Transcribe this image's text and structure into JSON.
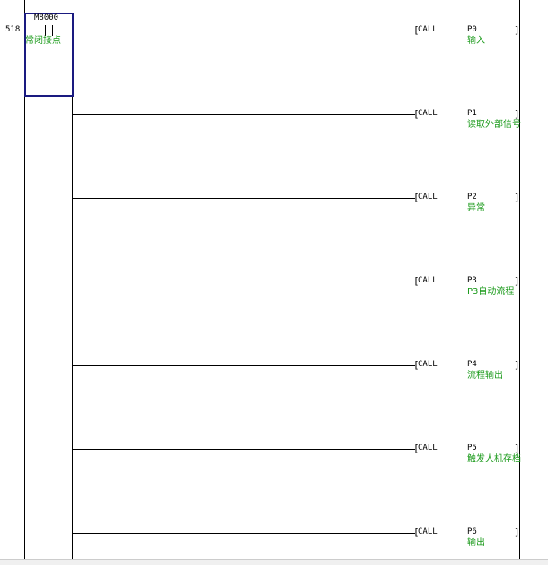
{
  "step_number": "518",
  "contact": {
    "device": "M8000",
    "comment": "常闭接点"
  },
  "instruction": "CALL",
  "rungs": [
    {
      "pointer": "P0",
      "comment": "输入"
    },
    {
      "pointer": "P1",
      "comment": "读取外部信号"
    },
    {
      "pointer": "P2",
      "comment": "异常"
    },
    {
      "pointer": "P3",
      "comment": "P3自动流程"
    },
    {
      "pointer": "P4",
      "comment": "流程输出"
    },
    {
      "pointer": "P5",
      "comment": "触发人机存档"
    },
    {
      "pointer": "P6",
      "comment": "输出"
    }
  ],
  "colors": {
    "comment": "#1a9a1a",
    "cursor": "#1a1a80"
  }
}
